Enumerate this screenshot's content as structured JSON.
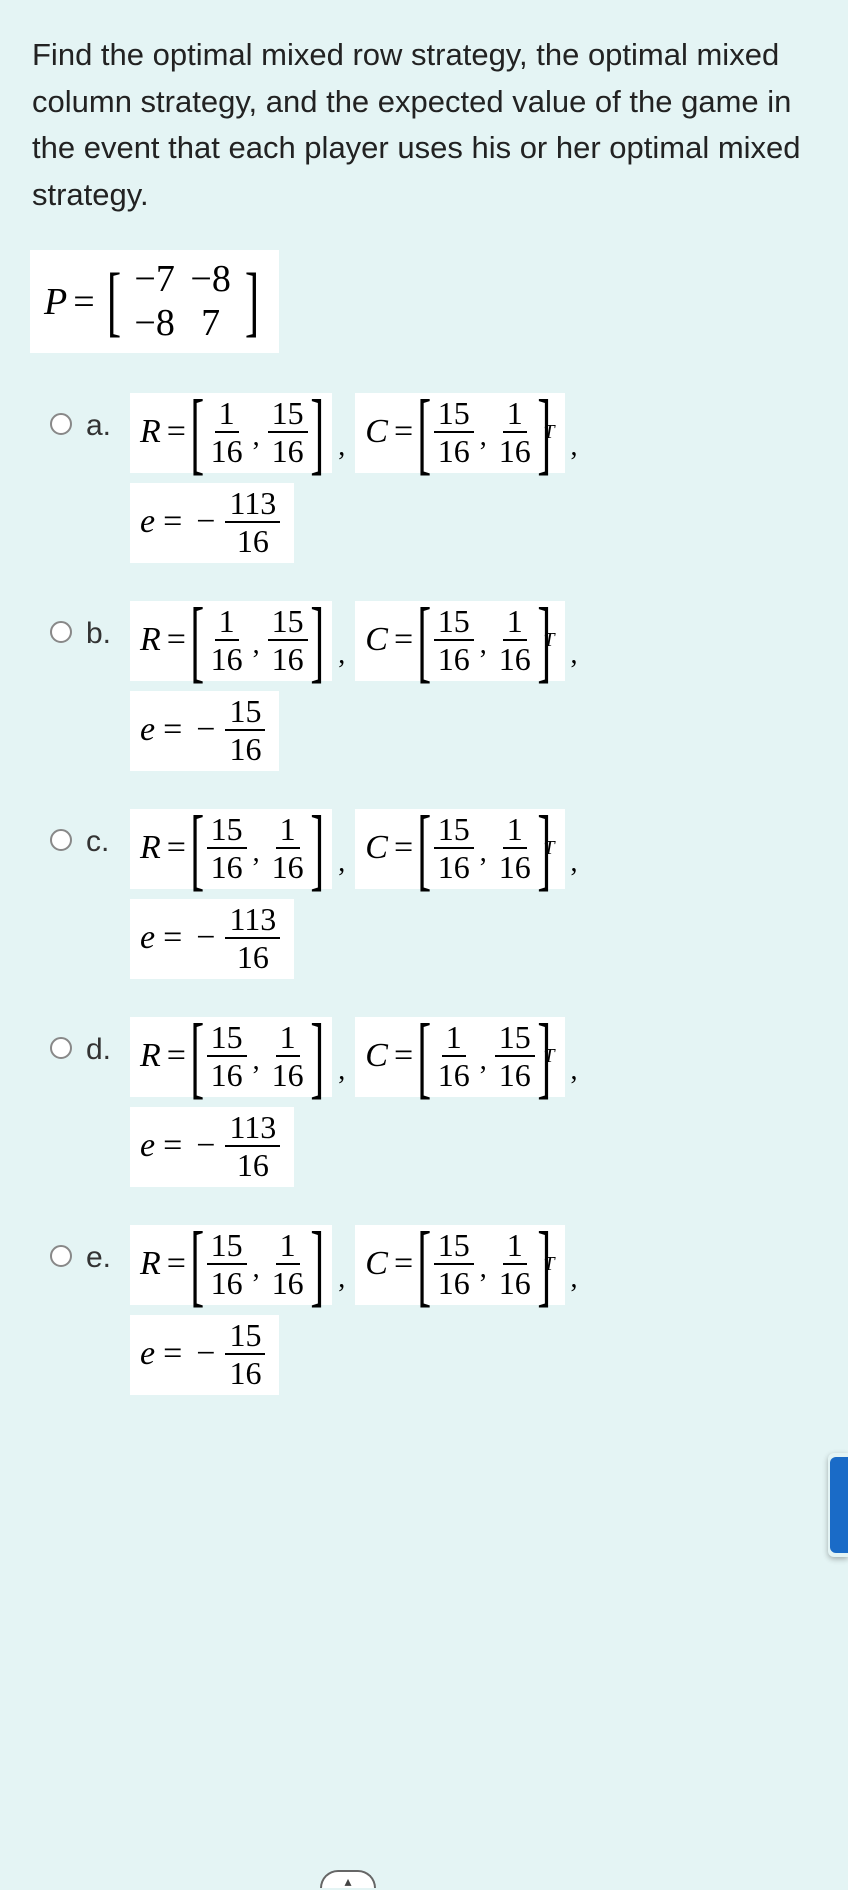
{
  "question": "Find the optimal mixed row strategy, the optimal mixed column strategy, and the expected value of the game in the event that each player uses his or her optimal mixed strategy.",
  "payoff_matrix": {
    "symbol": "P",
    "rows": [
      [
        "−7",
        "−8"
      ],
      [
        "−8",
        "7"
      ]
    ]
  },
  "options": [
    {
      "label": "a.",
      "R": [
        [
          "1",
          "16"
        ],
        [
          "15",
          "16"
        ]
      ],
      "C": [
        [
          "15",
          "16"
        ],
        [
          "1",
          "16"
        ]
      ],
      "e_num": "113",
      "e_den": "16",
      "e_sign": "−"
    },
    {
      "label": "b.",
      "R": [
        [
          "1",
          "16"
        ],
        [
          "15",
          "16"
        ]
      ],
      "C": [
        [
          "15",
          "16"
        ],
        [
          "1",
          "16"
        ]
      ],
      "e_num": "15",
      "e_den": "16",
      "e_sign": "−"
    },
    {
      "label": "c.",
      "R": [
        [
          "15",
          "16"
        ],
        [
          "1",
          "16"
        ]
      ],
      "C": [
        [
          "15",
          "16"
        ],
        [
          "1",
          "16"
        ]
      ],
      "e_num": "113",
      "e_den": "16",
      "e_sign": "−"
    },
    {
      "label": "d.",
      "R": [
        [
          "15",
          "16"
        ],
        [
          "1",
          "16"
        ]
      ],
      "C": [
        [
          "1",
          "16"
        ],
        [
          "15",
          "16"
        ]
      ],
      "e_num": "113",
      "e_den": "16",
      "e_sign": "−"
    },
    {
      "label": "e.",
      "R": [
        [
          "15",
          "16"
        ],
        [
          "1",
          "16"
        ]
      ],
      "C": [
        [
          "15",
          "16"
        ],
        [
          "1",
          "16"
        ]
      ],
      "e_num": "15",
      "e_den": "16",
      "e_sign": "−"
    }
  ],
  "symbols": {
    "R": "R",
    "C": "C",
    "e": "e",
    "equals": "=",
    "transpose": "T"
  },
  "colors": {
    "page_bg": "#e4f4f4",
    "box_bg": "#ffffff",
    "text": "#222222",
    "blue_tab": "#1a6bc7"
  }
}
